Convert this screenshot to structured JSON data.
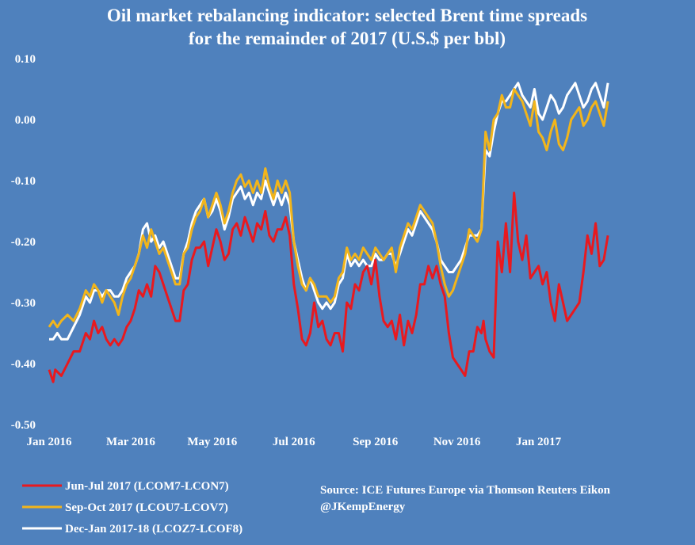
{
  "chart_data": {
    "type": "line",
    "title": "Oil market rebalancing indicator: selected Brent time spreads",
    "subtitle": "for the remainder of  2017 (U.S.$ per bbl)",
    "xlabel": "",
    "ylabel": "",
    "ylim": [
      -0.5,
      0.1
    ],
    "y_ticks": [
      "0.10",
      "0.00",
      "-0.10",
      "-0.20",
      "-0.30",
      "-0.40",
      "-0.50"
    ],
    "x_range": [
      0,
      15.7
    ],
    "x_ticks": [
      {
        "label": "Jan 2016",
        "x": 0
      },
      {
        "label": "Mar 2016",
        "x": 2
      },
      {
        "label": "May 2016",
        "x": 4
      },
      {
        "label": "Jul 2016",
        "x": 6
      },
      {
        "label": "Sep 2016",
        "x": 8
      },
      {
        "label": "Nov 2016",
        "x": 10
      },
      {
        "label": "Jan 2017",
        "x": 12
      }
    ],
    "x_unit": "months since Jan 2016",
    "grid": false,
    "legend_position": "bottom-left",
    "source": "Source: ICE Futures Europe via Thomson Reuters Eikon",
    "handle": "@JKempEnergy",
    "series": [
      {
        "name": "Jun-Jul 2017 (LCOM7-LCON7)",
        "color": "#e8191f",
        "x": [
          0.0,
          0.1,
          0.15,
          0.3,
          0.45,
          0.6,
          0.75,
          0.9,
          1.0,
          1.1,
          1.2,
          1.3,
          1.4,
          1.5,
          1.6,
          1.7,
          1.8,
          1.9,
          2.0,
          2.1,
          2.2,
          2.3,
          2.4,
          2.5,
          2.6,
          2.7,
          2.8,
          2.9,
          3.0,
          3.1,
          3.2,
          3.3,
          3.4,
          3.5,
          3.6,
          3.7,
          3.8,
          3.9,
          4.0,
          4.1,
          4.2,
          4.3,
          4.4,
          4.5,
          4.6,
          4.7,
          4.8,
          4.9,
          5.0,
          5.1,
          5.2,
          5.3,
          5.4,
          5.5,
          5.6,
          5.7,
          5.8,
          5.9,
          6.0,
          6.1,
          6.2,
          6.3,
          6.4,
          6.5,
          6.6,
          6.7,
          6.8,
          6.9,
          7.0,
          7.1,
          7.2,
          7.3,
          7.4,
          7.5,
          7.6,
          7.7,
          7.8,
          7.9,
          8.0,
          8.1,
          8.2,
          8.3,
          8.4,
          8.5,
          8.6,
          8.7,
          8.8,
          8.9,
          9.0,
          9.1,
          9.2,
          9.3,
          9.4,
          9.5,
          9.6,
          9.7,
          9.8,
          9.9,
          10.0,
          10.1,
          10.2,
          10.3,
          10.4,
          10.5,
          10.6,
          10.65,
          10.7,
          10.8,
          10.9,
          11.0,
          11.1,
          11.2,
          11.3,
          11.4,
          11.5,
          11.6,
          11.7,
          11.8,
          11.9,
          12.0,
          12.1,
          12.2,
          12.3,
          12.4,
          12.5,
          12.6,
          12.7,
          12.8,
          12.9,
          13.0,
          13.1,
          13.2,
          13.3,
          13.4,
          13.5,
          13.6,
          13.7
        ],
        "values": [
          -0.41,
          -0.43,
          -0.41,
          -0.42,
          -0.4,
          -0.38,
          -0.38,
          -0.35,
          -0.36,
          -0.33,
          -0.35,
          -0.34,
          -0.36,
          -0.37,
          -0.36,
          -0.37,
          -0.36,
          -0.34,
          -0.33,
          -0.31,
          -0.28,
          -0.29,
          -0.27,
          -0.29,
          -0.24,
          -0.25,
          -0.27,
          -0.29,
          -0.31,
          -0.33,
          -0.33,
          -0.28,
          -0.27,
          -0.23,
          -0.21,
          -0.21,
          -0.2,
          -0.24,
          -0.21,
          -0.18,
          -0.2,
          -0.23,
          -0.22,
          -0.18,
          -0.17,
          -0.19,
          -0.16,
          -0.18,
          -0.2,
          -0.17,
          -0.18,
          -0.15,
          -0.19,
          -0.2,
          -0.18,
          -0.18,
          -0.16,
          -0.19,
          -0.27,
          -0.31,
          -0.36,
          -0.37,
          -0.35,
          -0.3,
          -0.34,
          -0.33,
          -0.36,
          -0.37,
          -0.35,
          -0.35,
          -0.38,
          -0.3,
          -0.31,
          -0.27,
          -0.28,
          -0.25,
          -0.24,
          -0.27,
          -0.23,
          -0.29,
          -0.33,
          -0.34,
          -0.33,
          -0.36,
          -0.32,
          -0.37,
          -0.33,
          -0.35,
          -0.32,
          -0.27,
          -0.27,
          -0.24,
          -0.26,
          -0.24,
          -0.27,
          -0.29,
          -0.35,
          -0.39,
          -0.4,
          -0.41,
          -0.42,
          -0.38,
          -0.38,
          -0.34,
          -0.35,
          -0.33,
          -0.36,
          -0.38,
          -0.39,
          -0.2,
          -0.25,
          -0.17,
          -0.25,
          -0.12,
          -0.2,
          -0.23,
          -0.19,
          -0.26,
          -0.25,
          -0.24,
          -0.27,
          -0.25,
          -0.3,
          -0.33,
          -0.27,
          -0.3,
          -0.33,
          -0.32,
          -0.31,
          -0.3,
          -0.25,
          -0.19,
          -0.22,
          -0.17,
          -0.24,
          -0.23,
          -0.19
        ],
        "x_continued_note": "series ends near last x tick region"
      },
      {
        "name": "Sep-Oct 2017 (LCOU7-LCOV7)",
        "color": "#f2b51b",
        "x": [
          0.0,
          0.1,
          0.2,
          0.3,
          0.45,
          0.6,
          0.75,
          0.9,
          1.0,
          1.1,
          1.2,
          1.3,
          1.4,
          1.5,
          1.6,
          1.7,
          1.8,
          1.9,
          2.0,
          2.1,
          2.2,
          2.3,
          2.4,
          2.5,
          2.6,
          2.7,
          2.8,
          2.9,
          3.0,
          3.1,
          3.2,
          3.3,
          3.4,
          3.5,
          3.6,
          3.7,
          3.8,
          3.9,
          4.0,
          4.1,
          4.2,
          4.3,
          4.4,
          4.5,
          4.6,
          4.7,
          4.8,
          4.9,
          5.0,
          5.1,
          5.2,
          5.3,
          5.4,
          5.5,
          5.6,
          5.7,
          5.8,
          5.9,
          6.0,
          6.1,
          6.2,
          6.3,
          6.4,
          6.5,
          6.6,
          6.7,
          6.8,
          6.9,
          7.0,
          7.1,
          7.2,
          7.3,
          7.4,
          7.5,
          7.6,
          7.7,
          7.8,
          7.9,
          8.0,
          8.1,
          8.2,
          8.3,
          8.4,
          8.5,
          8.6,
          8.7,
          8.8,
          8.9,
          9.0,
          9.1,
          9.2,
          9.3,
          9.4,
          9.5,
          9.6,
          9.7,
          9.8,
          9.9,
          10.0,
          10.1,
          10.2,
          10.3,
          10.4,
          10.5,
          10.6,
          10.7,
          10.8,
          10.9,
          11.0,
          11.1,
          11.2,
          11.3,
          11.4,
          11.5,
          11.6,
          11.7,
          11.8,
          11.9,
          12.0,
          12.1,
          12.2,
          12.3,
          12.4,
          12.5,
          12.6,
          12.7,
          12.8,
          12.9,
          13.0,
          13.1,
          13.2,
          13.3,
          13.4,
          13.5,
          13.6,
          13.7
        ],
        "values": [
          -0.34,
          -0.33,
          -0.34,
          -0.33,
          -0.32,
          -0.33,
          -0.31,
          -0.28,
          -0.29,
          -0.27,
          -0.28,
          -0.3,
          -0.28,
          -0.29,
          -0.3,
          -0.32,
          -0.29,
          -0.27,
          -0.26,
          -0.24,
          -0.22,
          -0.19,
          -0.21,
          -0.18,
          -0.2,
          -0.22,
          -0.21,
          -0.23,
          -0.25,
          -0.27,
          -0.27,
          -0.22,
          -0.21,
          -0.18,
          -0.16,
          -0.15,
          -0.13,
          -0.16,
          -0.14,
          -0.12,
          -0.14,
          -0.17,
          -0.15,
          -0.12,
          -0.1,
          -0.09,
          -0.11,
          -0.1,
          -0.12,
          -0.1,
          -0.12,
          -0.08,
          -0.11,
          -0.13,
          -0.1,
          -0.12,
          -0.1,
          -0.12,
          -0.2,
          -0.24,
          -0.27,
          -0.28,
          -0.26,
          -0.27,
          -0.29,
          -0.29,
          -0.29,
          -0.3,
          -0.29,
          -0.26,
          -0.25,
          -0.21,
          -0.23,
          -0.22,
          -0.23,
          -0.21,
          -0.22,
          -0.23,
          -0.21,
          -0.22,
          -0.23,
          -0.22,
          -0.21,
          -0.25,
          -0.21,
          -0.19,
          -0.17,
          -0.18,
          -0.16,
          -0.14,
          -0.15,
          -0.16,
          -0.17,
          -0.2,
          -0.24,
          -0.27,
          -0.29,
          -0.28,
          -0.26,
          -0.24,
          -0.22,
          -0.18,
          -0.19,
          -0.2,
          -0.18,
          -0.02,
          -0.05,
          0.0,
          0.01,
          0.04,
          0.02,
          0.02,
          0.05,
          0.04,
          0.03,
          0.01,
          -0.01,
          0.03,
          -0.02,
          -0.03,
          -0.05,
          -0.02,
          0.0,
          -0.04,
          -0.05,
          -0.03,
          0.0,
          0.01,
          0.02,
          -0.01,
          0.0,
          0.02,
          0.03,
          0.01,
          -0.01,
          0.03
        ],
        "x_continued_note": ""
      },
      {
        "name": "Dec-Jan 2017-18 (LCOZ7-LCOF8)",
        "color": "#ffffff",
        "x": [
          0.0,
          0.1,
          0.2,
          0.3,
          0.45,
          0.6,
          0.75,
          0.9,
          1.0,
          1.1,
          1.2,
          1.3,
          1.4,
          1.5,
          1.6,
          1.7,
          1.8,
          1.9,
          2.0,
          2.1,
          2.2,
          2.3,
          2.4,
          2.5,
          2.6,
          2.7,
          2.8,
          2.9,
          3.0,
          3.1,
          3.2,
          3.3,
          3.4,
          3.5,
          3.6,
          3.7,
          3.8,
          3.9,
          4.0,
          4.1,
          4.2,
          4.3,
          4.4,
          4.5,
          4.6,
          4.7,
          4.8,
          4.9,
          5.0,
          5.1,
          5.2,
          5.3,
          5.4,
          5.5,
          5.6,
          5.7,
          5.8,
          5.9,
          6.0,
          6.1,
          6.2,
          6.3,
          6.4,
          6.5,
          6.6,
          6.7,
          6.8,
          6.9,
          7.0,
          7.1,
          7.2,
          7.3,
          7.4,
          7.5,
          7.6,
          7.7,
          7.8,
          7.9,
          8.0,
          8.1,
          8.2,
          8.3,
          8.4,
          8.5,
          8.6,
          8.7,
          8.8,
          8.9,
          9.0,
          9.1,
          9.2,
          9.3,
          9.4,
          9.5,
          9.6,
          9.7,
          9.8,
          9.9,
          10.0,
          10.1,
          10.2,
          10.3,
          10.4,
          10.5,
          10.6,
          10.7,
          10.8,
          10.9,
          11.0,
          11.1,
          11.2,
          11.3,
          11.4,
          11.5,
          11.6,
          11.7,
          11.8,
          11.9,
          12.0,
          12.1,
          12.2,
          12.3,
          12.4,
          12.5,
          12.6,
          12.7,
          12.8,
          12.9,
          13.0,
          13.1,
          13.2,
          13.3,
          13.4,
          13.5,
          13.6,
          13.7
        ],
        "values": [
          -0.36,
          -0.36,
          -0.35,
          -0.36,
          -0.36,
          -0.34,
          -0.32,
          -0.29,
          -0.3,
          -0.28,
          -0.28,
          -0.29,
          -0.28,
          -0.28,
          -0.29,
          -0.29,
          -0.28,
          -0.26,
          -0.25,
          -0.24,
          -0.22,
          -0.18,
          -0.17,
          -0.2,
          -0.19,
          -0.21,
          -0.2,
          -0.22,
          -0.24,
          -0.26,
          -0.26,
          -0.22,
          -0.2,
          -0.17,
          -0.15,
          -0.14,
          -0.13,
          -0.16,
          -0.15,
          -0.13,
          -0.15,
          -0.18,
          -0.16,
          -0.13,
          -0.12,
          -0.11,
          -0.13,
          -0.12,
          -0.14,
          -0.12,
          -0.13,
          -0.1,
          -0.12,
          -0.14,
          -0.12,
          -0.14,
          -0.12,
          -0.14,
          -0.2,
          -0.23,
          -0.26,
          -0.28,
          -0.26,
          -0.28,
          -0.3,
          -0.31,
          -0.3,
          -0.31,
          -0.3,
          -0.27,
          -0.26,
          -0.22,
          -0.24,
          -0.23,
          -0.24,
          -0.23,
          -0.24,
          -0.24,
          -0.22,
          -0.23,
          -0.23,
          -0.22,
          -0.22,
          -0.24,
          -0.22,
          -0.2,
          -0.18,
          -0.19,
          -0.17,
          -0.15,
          -0.16,
          -0.17,
          -0.18,
          -0.2,
          -0.23,
          -0.24,
          -0.25,
          -0.25,
          -0.24,
          -0.23,
          -0.21,
          -0.19,
          -0.19,
          -0.19,
          -0.18,
          -0.05,
          -0.06,
          -0.02,
          0.01,
          0.03,
          0.03,
          0.04,
          0.05,
          0.06,
          0.04,
          0.03,
          0.02,
          0.05,
          0.01,
          0.0,
          0.02,
          0.04,
          0.03,
          0.01,
          0.02,
          0.04,
          0.05,
          0.06,
          0.04,
          0.02,
          0.03,
          0.05,
          0.06,
          0.04,
          0.02,
          0.06
        ],
        "x_continued_note": ""
      }
    ]
  }
}
